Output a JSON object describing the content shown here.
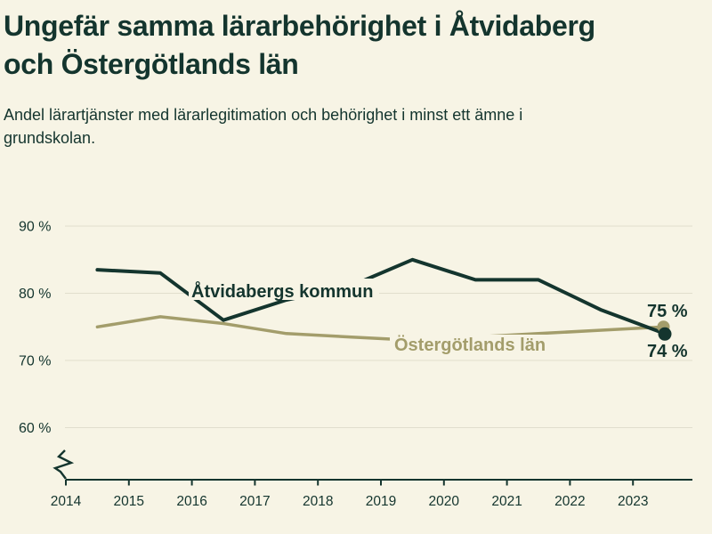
{
  "header": {
    "title": "Ungefär samma lärarbehörighet i Åtvidaberg och Östergötlands län",
    "title_lines": [
      "Ungefär samma lärarbehörighet i Åtvidaberg",
      "och Östergötlands län"
    ],
    "subtitle": "Andel lärartjänster med lärarlegitimation och behörighet i minst ett ämne i grundskolan.",
    "subtitle_lines": [
      "Andel lärartjänster med lärarlegitimation och behörighet i minst ett ämne i",
      "grundskolan."
    ]
  },
  "colors": {
    "background": "#f7f4e5",
    "dark_green": "#14352e",
    "olive": "#a39d6b",
    "gridline": "#e1decd"
  },
  "chart_data": {
    "type": "line",
    "x": [
      2014.5,
      2015.5,
      2016.5,
      2017.5,
      2018.5,
      2019.5,
      2020.5,
      2021.5,
      2022.5,
      2023.5
    ],
    "x_tick_labels": [
      "2014",
      "2015",
      "2016",
      "2017",
      "2018",
      "2019",
      "2020",
      "2021",
      "2022",
      "2023"
    ],
    "y_ticks": [
      90,
      80,
      70,
      60
    ],
    "y_tick_labels": [
      "90 %",
      "80 %",
      "70 %",
      "60 %"
    ],
    "ylim": [
      60,
      90
    ],
    "xlabel": "",
    "ylabel": "",
    "grid": "horizontal",
    "axis_break": true,
    "legend_position": "inline-labels",
    "series": [
      {
        "id": "atvidaberg",
        "name": "Åtvidabergs kommun",
        "color": "#14352e",
        "values": [
          83.5,
          83,
          76,
          79,
          81,
          85,
          82,
          82,
          77.5,
          74
        ],
        "end_value_label": "74 %"
      },
      {
        "id": "ostergotland",
        "name": "Östergötlands län",
        "color": "#a39d6b",
        "values": [
          75,
          76.5,
          75.5,
          74,
          73.5,
          73,
          73.5,
          74,
          74.5,
          75
        ],
        "end_value_label": "75 %"
      }
    ]
  }
}
